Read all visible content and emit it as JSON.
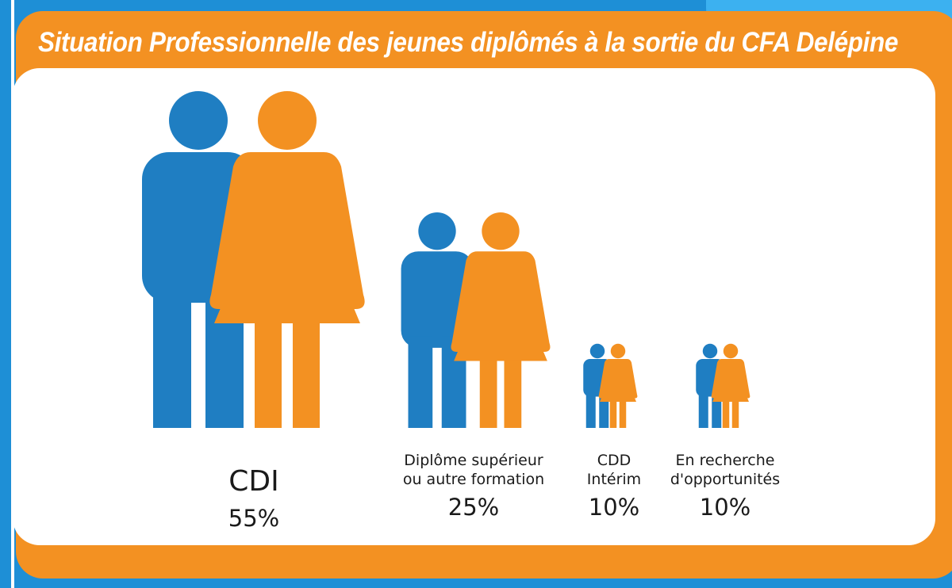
{
  "title": "Situation Professionnelle des jeunes diplômés à la sortie du CFA Delépine",
  "colors": {
    "background": "#1e8fd6",
    "frame": "#f39122",
    "man": "#1f7ec2",
    "woman": "#f39122",
    "panel": "#ffffff"
  },
  "icons": [
    "man-figure-icon",
    "woman-figure-icon"
  ],
  "chart_data": {
    "type": "pictograph",
    "title": "Situation Professionnelle des jeunes diplômés à la sortie du CFA Delépine",
    "unit": "%",
    "categories": [
      {
        "label_lines": [
          "CDI"
        ],
        "value": 55,
        "display": "55%"
      },
      {
        "label_lines": [
          "Diplôme supérieur",
          "ou autre formation"
        ],
        "value": 25,
        "display": "25%"
      },
      {
        "label_lines": [
          "CDD",
          "Intérim"
        ],
        "value": 10,
        "display": "10%"
      },
      {
        "label_lines": [
          "En recherche",
          "d'opportunités"
        ],
        "value": 10,
        "display": "10%"
      }
    ]
  }
}
